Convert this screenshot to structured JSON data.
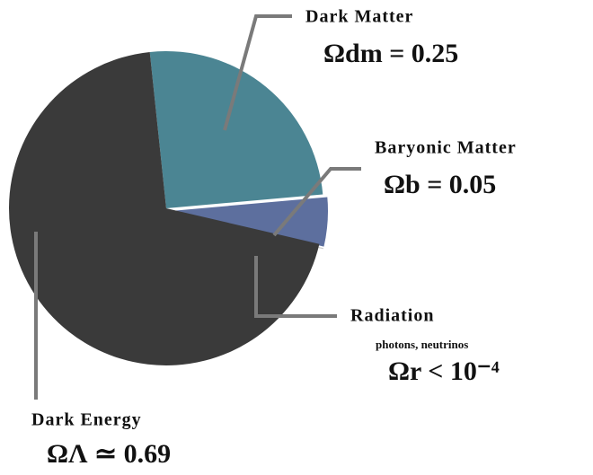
{
  "chart_data": {
    "type": "pie",
    "categories": [
      "Dark Matter",
      "Baryonic Matter",
      "Radiation",
      "Dark Energy"
    ],
    "values": [
      0.25,
      0.05,
      0.0001,
      0.69
    ],
    "value_labels": [
      "Ωdm = 0.25",
      "Ωb = 0.05",
      "Ωr < 10⁻⁴",
      "ΩΛ ≃ 0.69"
    ],
    "sublabels": [
      null,
      null,
      "photons, neutrinos",
      null
    ],
    "colors": [
      "#4b8593",
      "#5d6f9e",
      "#f4f4f4",
      "#3a3a3a"
    ]
  }
}
